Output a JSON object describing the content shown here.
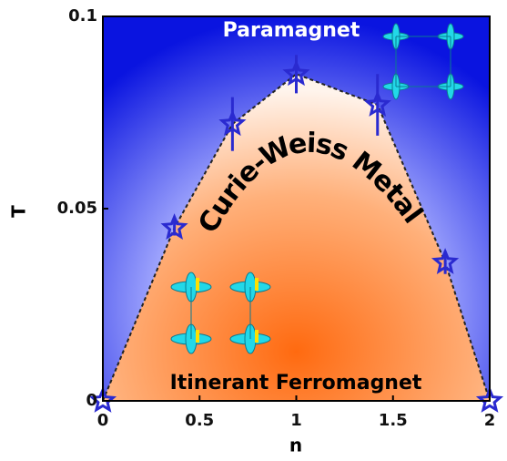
{
  "chart_data": {
    "type": "scatter",
    "x_label": "n",
    "y_label": "T",
    "annotations": [
      "Paramagnet",
      "Curie-Weiss Metal",
      "Itinerant Ferromagnet"
    ],
    "x": [
      0,
      0.37,
      0.67,
      1,
      1.42,
      1.77,
      2
    ],
    "series": [
      {
        "color": "#2a2ad0",
        "values": [
          0,
          0.045,
          0.072,
          0.085,
          0.077,
          0.036,
          0
        ],
        "errors": [
          null,
          0.002,
          0.007,
          0.005,
          0.008,
          0.003,
          null
        ]
      }
    ],
    "xlim": [
      0,
      2
    ],
    "ylim": [
      0,
      0.1
    ],
    "xticks": [
      0,
      0.5,
      1,
      1.5,
      2
    ],
    "yticks": [
      0,
      0.05,
      0.1
    ]
  }
}
